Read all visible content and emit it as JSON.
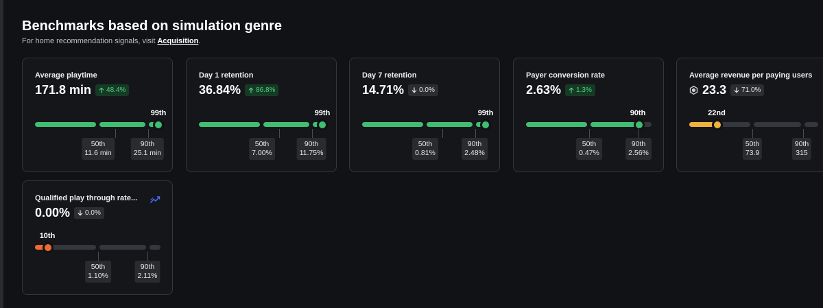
{
  "header": {
    "title": "Benchmarks based on simulation genre",
    "subtitle_prefix": "For home recommendation signals, visit ",
    "subtitle_link": "Acquisition",
    "subtitle_suffix": "."
  },
  "colors": {
    "green": "#3fbf73",
    "yellow": "#f0b33a",
    "orange": "#ee6a33",
    "track": "#36373c",
    "delta_up_bg": "#163a25",
    "delta_up_fg": "#4fd17e",
    "delta_down_bg": "#2c2d31"
  },
  "cards": [
    {
      "title": "Average playtime",
      "value": "171.8 min",
      "delta": "48.4%",
      "delta_dir": "up",
      "percentile_label": "99th",
      "percentile": 99,
      "bar_color": "green",
      "benchmarks": [
        {
          "label": "50th",
          "value": "11.6 min"
        },
        {
          "label": "90th",
          "value": "25.1 min"
        }
      ]
    },
    {
      "title": "Day 1 retention",
      "value": "36.84%",
      "delta": "86.8%",
      "delta_dir": "up",
      "percentile_label": "99th",
      "percentile": 99,
      "bar_color": "green",
      "benchmarks": [
        {
          "label": "50th",
          "value": "7.00%"
        },
        {
          "label": "90th",
          "value": "11.75%"
        }
      ]
    },
    {
      "title": "Day 7 retention",
      "value": "14.71%",
      "delta": "0.0%",
      "delta_dir": "down",
      "percentile_label": "99th",
      "percentile": 99,
      "bar_color": "green",
      "benchmarks": [
        {
          "label": "50th",
          "value": "0.81%"
        },
        {
          "label": "90th",
          "value": "2.48%"
        }
      ]
    },
    {
      "title": "Payer conversion rate",
      "value": "2.63%",
      "delta": "1.3%",
      "delta_dir": "up",
      "percentile_label": "90th",
      "percentile": 90,
      "bar_color": "green",
      "benchmarks": [
        {
          "label": "50th",
          "value": "0.47%"
        },
        {
          "label": "90th",
          "value": "2.56%"
        }
      ]
    },
    {
      "title": "Average revenue per paying users",
      "value": "23.3",
      "value_icon": "robux-icon",
      "delta": "71.0%",
      "delta_dir": "down",
      "percentile_label": "22nd",
      "percentile": 22,
      "bar_color": "yellow",
      "benchmarks": [
        {
          "label": "50th",
          "value": "73.9"
        },
        {
          "label": "90th",
          "value": "315"
        }
      ]
    },
    {
      "title": "Qualified play through rate...",
      "title_icon": "trend-chart-icon",
      "value": "0.00%",
      "delta": "0.0%",
      "delta_dir": "down",
      "percentile_label": "10th",
      "percentile": 10,
      "bar_color": "orange",
      "benchmarks": [
        {
          "label": "50th",
          "value": "1.10%"
        },
        {
          "label": "90th",
          "value": "2.11%"
        }
      ]
    }
  ]
}
